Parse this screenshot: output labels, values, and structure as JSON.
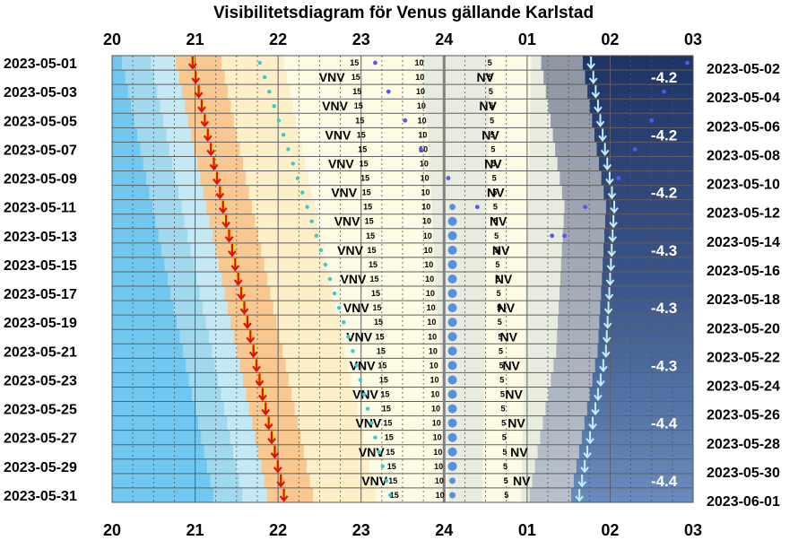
{
  "chart_data": {
    "type": "visibility-diagram",
    "title": "Visibilitetsdiagram för Venus gällande Karlstad",
    "hour_labels": [
      "20",
      "21",
      "22",
      "23",
      "24",
      "01",
      "02",
      "03"
    ],
    "dates_left": [
      "2023-05-01",
      "2023-05-03",
      "2023-05-05",
      "2023-05-07",
      "2023-05-09",
      "2023-05-11",
      "2023-05-13",
      "2023-05-15",
      "2023-05-17",
      "2023-05-19",
      "2023-05-21",
      "2023-05-23",
      "2023-05-25",
      "2023-05-27",
      "2023-05-29",
      "2023-05-31"
    ],
    "dates_right": [
      "2023-05-02",
      "2023-05-04",
      "2023-05-06",
      "2023-05-08",
      "2023-05-10",
      "2023-05-12",
      "2023-05-14",
      "2023-05-16",
      "2023-05-18",
      "2023-05-20",
      "2023-05-22",
      "2023-05-24",
      "2023-05-26",
      "2023-05-28",
      "2023-05-30",
      "2023-06-01"
    ],
    "x_range_hours": [
      20,
      27
    ],
    "days": 31,
    "colors": {
      "daylight": "#70c8f0",
      "twilight1": "#a0d8ee",
      "twilight2": "#c4e8f4",
      "sunset_glow": "#f8c890",
      "sky_pale": "#fdf0c8",
      "sky_yellow": "#fdfbe4",
      "sky_night": "#e8ecde",
      "night_gray": "#a8b0ba",
      "night_blue": "#2a3f6e",
      "sunset_arrow": "#e01010",
      "sunset_arrow_edge": "#f0e000",
      "moonset_arrow": "#c0f0ff",
      "gridline": "#606060",
      "midnight": "#808080",
      "venus_dot": "#38c8d0",
      "moon_dot": "#5890e0",
      "stars_dot": "#5858e8"
    },
    "sunset_hours": [
      {
        "day": 1,
        "hour": 20.97
      },
      {
        "day": 31,
        "hour": 22.07
      }
    ],
    "moonset_hours": [
      {
        "day": 1,
        "hour": 25.77
      },
      {
        "day": 11,
        "hour": 26.05
      },
      {
        "day": 21,
        "hour": 25.95
      },
      {
        "day": 31,
        "hour": 25.63
      }
    ],
    "venus_track": [
      {
        "day": 1,
        "hour": 21.78
      },
      {
        "day": 11,
        "hour": 22.35
      },
      {
        "day": 21,
        "hour": 22.9
      },
      {
        "day": 31,
        "hour": 23.35
      }
    ],
    "moon_dots": [
      {
        "day": 1,
        "hour": 23.17
      },
      {
        "day": 3,
        "hour": 23.33
      },
      {
        "day": 5,
        "hour": 23.53
      },
      {
        "day": 7,
        "hour": 23.72
      },
      {
        "day": 9,
        "hour": 24.05
      },
      {
        "day": 11,
        "hour": 24.4
      },
      {
        "day": 13,
        "hour": 25.45
      },
      {
        "day": 1,
        "hour": 26.93
      },
      {
        "day": 3,
        "hour": 26.65
      },
      {
        "day": 5,
        "hour": 26.5
      },
      {
        "day": 7,
        "hour": 26.3
      },
      {
        "day": 9,
        "hour": 26.1
      },
      {
        "day": 11,
        "hour": 25.7
      },
      {
        "day": 13,
        "hour": 25.3
      }
    ],
    "altitude_columns": [
      {
        "label": "15",
        "hour_start": 22.92,
        "hour_end": 23.4
      },
      {
        "label": "10",
        "hour_start": 23.7,
        "hour_end": 23.95
      },
      {
        "label": "5",
        "hour_start": 24.55,
        "hour_end": 24.75
      }
    ],
    "direction_labels": [
      {
        "text": "VNV",
        "hour_start": 22.63,
        "hour_end": 23.18
      },
      {
        "text": "NV",
        "hour_start": 24.48,
        "hour_end": 24.95
      }
    ],
    "magnitude": [
      {
        "text": "-4.2",
        "day": 2
      },
      {
        "text": "-4.2",
        "day": 6
      },
      {
        "text": "-4.2",
        "day": 10
      },
      {
        "text": "-4.3",
        "day": 14
      },
      {
        "text": "-4.3",
        "day": 18
      },
      {
        "text": "-4.3",
        "day": 22
      },
      {
        "text": "-4.4",
        "day": 26
      },
      {
        "text": "-4.4",
        "day": 30
      }
    ]
  }
}
